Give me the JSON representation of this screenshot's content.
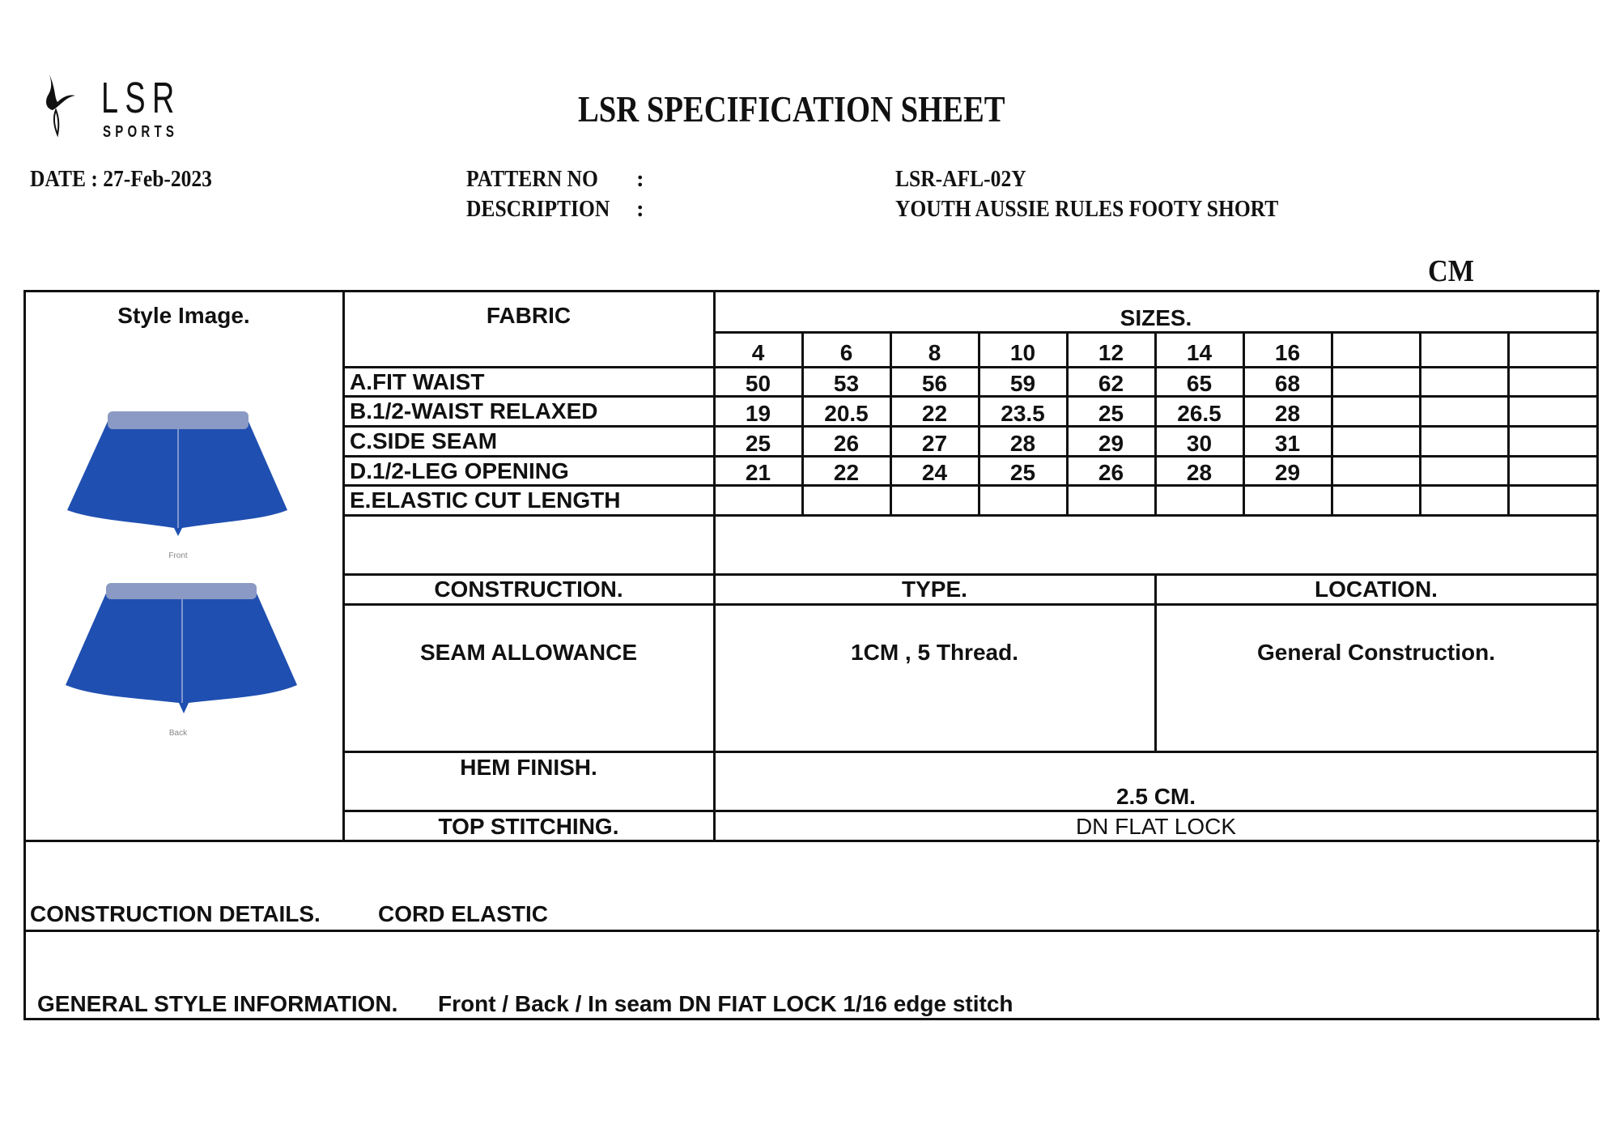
{
  "logo": {
    "brand": "LSR",
    "sub": "SPORTS"
  },
  "title": "LSR SPECIFICATION SHEET",
  "date_label": "DATE : 27-Feb-2023",
  "pattern_no": {
    "label": "PATTERN  NO",
    "colon": ":",
    "value": "LSR-AFL-02Y"
  },
  "description": {
    "label": "DESCRIPTION",
    "colon": ":",
    "value": "YOUTH AUSSIE RULES FOOTY SHORT"
  },
  "unit": "CM",
  "style_image": {
    "header": "Style Image.",
    "front_label": "Front",
    "back_label": "Back",
    "garment_color": "#1f4fb0"
  },
  "fabric_header": "FABRIC",
  "sizes_header": "SIZES.",
  "sizes": [
    "4",
    "6",
    "8",
    "10",
    "12",
    "14",
    "16",
    "",
    "",
    ""
  ],
  "measurements": [
    {
      "label": "A.FIT WAIST",
      "values": [
        "50",
        "53",
        "56",
        "59",
        "62",
        "65",
        "68",
        "",
        "",
        ""
      ]
    },
    {
      "label": "B.1/2-WAIST RELAXED",
      "values": [
        "19",
        "20.5",
        "22",
        "23.5",
        "25",
        "26.5",
        "28",
        "",
        "",
        ""
      ]
    },
    {
      "label": "C.SIDE SEAM",
      "values": [
        "25",
        "26",
        "27",
        "28",
        "29",
        "30",
        "31",
        "",
        "",
        ""
      ]
    },
    {
      "label": "D.1/2-LEG OPENING",
      "values": [
        "21",
        "22",
        "24",
        "25",
        "26",
        "28",
        "29",
        "",
        "",
        ""
      ]
    },
    {
      "label": "E.ELASTIC CUT LENGTH",
      "values": [
        "",
        "",
        "",
        "",
        "",
        "",
        "",
        "",
        "",
        ""
      ]
    }
  ],
  "construction": {
    "header": "CONSTRUCTION.",
    "type_header": "TYPE.",
    "location_header": "LOCATION.",
    "item": "SEAM ALLOWANCE",
    "type": "1CM , 5 Thread.",
    "location": "General Construction."
  },
  "hem_finish": {
    "label": "HEM FINISH.",
    "value": "2.5 CM."
  },
  "top_stitching": {
    "label": "TOP STITCHING.",
    "value": "DN  FLAT LOCK"
  },
  "construction_details": {
    "label": "CONSTRUCTION DETAILS.",
    "value": "CORD ELASTIC"
  },
  "general_style": {
    "label": "GENERAL STYLE INFORMATION.",
    "value": "Front / Back / In seam  DN FIAT LOCK 1/16  edge stitch"
  }
}
